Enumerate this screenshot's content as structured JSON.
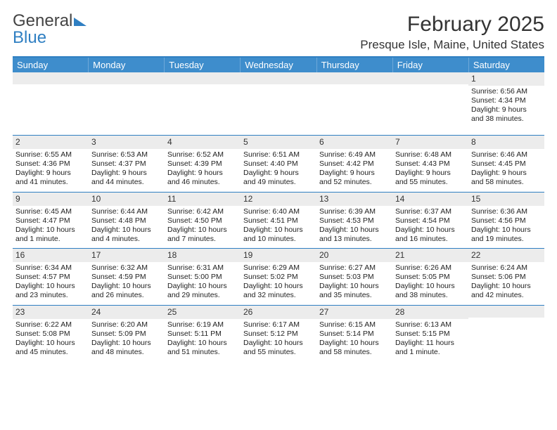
{
  "logo": {
    "text1": "General",
    "text2": "Blue"
  },
  "title": "February 2025",
  "location": "Presque Isle, Maine, United States",
  "colors": {
    "header_bar": "#3e8dcc",
    "divider": "#2f7fc2",
    "daynum_bg": "#ececec",
    "text": "#222222",
    "background": "#ffffff"
  },
  "fonts": {
    "body_size_pt": 10.5,
    "title_size_pt": 30,
    "location_size_pt": 17,
    "dow_size_pt": 13
  },
  "days_of_week": [
    "Sunday",
    "Monday",
    "Tuesday",
    "Wednesday",
    "Thursday",
    "Friday",
    "Saturday"
  ],
  "weeks": [
    [
      null,
      null,
      null,
      null,
      null,
      null,
      {
        "n": "1",
        "sunrise": "Sunrise: 6:56 AM",
        "sunset": "Sunset: 4:34 PM",
        "day1": "Daylight: 9 hours",
        "day2": "and 38 minutes."
      }
    ],
    [
      {
        "n": "2",
        "sunrise": "Sunrise: 6:55 AM",
        "sunset": "Sunset: 4:36 PM",
        "day1": "Daylight: 9 hours",
        "day2": "and 41 minutes."
      },
      {
        "n": "3",
        "sunrise": "Sunrise: 6:53 AM",
        "sunset": "Sunset: 4:37 PM",
        "day1": "Daylight: 9 hours",
        "day2": "and 44 minutes."
      },
      {
        "n": "4",
        "sunrise": "Sunrise: 6:52 AM",
        "sunset": "Sunset: 4:39 PM",
        "day1": "Daylight: 9 hours",
        "day2": "and 46 minutes."
      },
      {
        "n": "5",
        "sunrise": "Sunrise: 6:51 AM",
        "sunset": "Sunset: 4:40 PM",
        "day1": "Daylight: 9 hours",
        "day2": "and 49 minutes."
      },
      {
        "n": "6",
        "sunrise": "Sunrise: 6:49 AM",
        "sunset": "Sunset: 4:42 PM",
        "day1": "Daylight: 9 hours",
        "day2": "and 52 minutes."
      },
      {
        "n": "7",
        "sunrise": "Sunrise: 6:48 AM",
        "sunset": "Sunset: 4:43 PM",
        "day1": "Daylight: 9 hours",
        "day2": "and 55 minutes."
      },
      {
        "n": "8",
        "sunrise": "Sunrise: 6:46 AM",
        "sunset": "Sunset: 4:45 PM",
        "day1": "Daylight: 9 hours",
        "day2": "and 58 minutes."
      }
    ],
    [
      {
        "n": "9",
        "sunrise": "Sunrise: 6:45 AM",
        "sunset": "Sunset: 4:47 PM",
        "day1": "Daylight: 10 hours",
        "day2": "and 1 minute."
      },
      {
        "n": "10",
        "sunrise": "Sunrise: 6:44 AM",
        "sunset": "Sunset: 4:48 PM",
        "day1": "Daylight: 10 hours",
        "day2": "and 4 minutes."
      },
      {
        "n": "11",
        "sunrise": "Sunrise: 6:42 AM",
        "sunset": "Sunset: 4:50 PM",
        "day1": "Daylight: 10 hours",
        "day2": "and 7 minutes."
      },
      {
        "n": "12",
        "sunrise": "Sunrise: 6:40 AM",
        "sunset": "Sunset: 4:51 PM",
        "day1": "Daylight: 10 hours",
        "day2": "and 10 minutes."
      },
      {
        "n": "13",
        "sunrise": "Sunrise: 6:39 AM",
        "sunset": "Sunset: 4:53 PM",
        "day1": "Daylight: 10 hours",
        "day2": "and 13 minutes."
      },
      {
        "n": "14",
        "sunrise": "Sunrise: 6:37 AM",
        "sunset": "Sunset: 4:54 PM",
        "day1": "Daylight: 10 hours",
        "day2": "and 16 minutes."
      },
      {
        "n": "15",
        "sunrise": "Sunrise: 6:36 AM",
        "sunset": "Sunset: 4:56 PM",
        "day1": "Daylight: 10 hours",
        "day2": "and 19 minutes."
      }
    ],
    [
      {
        "n": "16",
        "sunrise": "Sunrise: 6:34 AM",
        "sunset": "Sunset: 4:57 PM",
        "day1": "Daylight: 10 hours",
        "day2": "and 23 minutes."
      },
      {
        "n": "17",
        "sunrise": "Sunrise: 6:32 AM",
        "sunset": "Sunset: 4:59 PM",
        "day1": "Daylight: 10 hours",
        "day2": "and 26 minutes."
      },
      {
        "n": "18",
        "sunrise": "Sunrise: 6:31 AM",
        "sunset": "Sunset: 5:00 PM",
        "day1": "Daylight: 10 hours",
        "day2": "and 29 minutes."
      },
      {
        "n": "19",
        "sunrise": "Sunrise: 6:29 AM",
        "sunset": "Sunset: 5:02 PM",
        "day1": "Daylight: 10 hours",
        "day2": "and 32 minutes."
      },
      {
        "n": "20",
        "sunrise": "Sunrise: 6:27 AM",
        "sunset": "Sunset: 5:03 PM",
        "day1": "Daylight: 10 hours",
        "day2": "and 35 minutes."
      },
      {
        "n": "21",
        "sunrise": "Sunrise: 6:26 AM",
        "sunset": "Sunset: 5:05 PM",
        "day1": "Daylight: 10 hours",
        "day2": "and 38 minutes."
      },
      {
        "n": "22",
        "sunrise": "Sunrise: 6:24 AM",
        "sunset": "Sunset: 5:06 PM",
        "day1": "Daylight: 10 hours",
        "day2": "and 42 minutes."
      }
    ],
    [
      {
        "n": "23",
        "sunrise": "Sunrise: 6:22 AM",
        "sunset": "Sunset: 5:08 PM",
        "day1": "Daylight: 10 hours",
        "day2": "and 45 minutes."
      },
      {
        "n": "24",
        "sunrise": "Sunrise: 6:20 AM",
        "sunset": "Sunset: 5:09 PM",
        "day1": "Daylight: 10 hours",
        "day2": "and 48 minutes."
      },
      {
        "n": "25",
        "sunrise": "Sunrise: 6:19 AM",
        "sunset": "Sunset: 5:11 PM",
        "day1": "Daylight: 10 hours",
        "day2": "and 51 minutes."
      },
      {
        "n": "26",
        "sunrise": "Sunrise: 6:17 AM",
        "sunset": "Sunset: 5:12 PM",
        "day1": "Daylight: 10 hours",
        "day2": "and 55 minutes."
      },
      {
        "n": "27",
        "sunrise": "Sunrise: 6:15 AM",
        "sunset": "Sunset: 5:14 PM",
        "day1": "Daylight: 10 hours",
        "day2": "and 58 minutes."
      },
      {
        "n": "28",
        "sunrise": "Sunrise: 6:13 AM",
        "sunset": "Sunset: 5:15 PM",
        "day1": "Daylight: 11 hours",
        "day2": "and 1 minute."
      },
      null
    ]
  ]
}
